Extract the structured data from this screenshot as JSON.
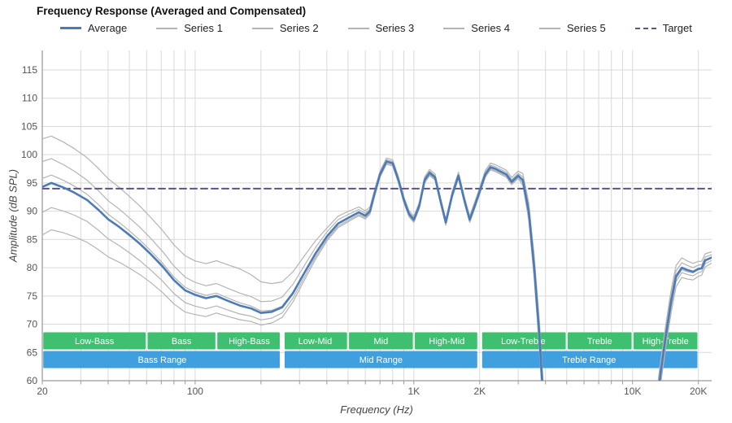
{
  "title": "Frequency Response (Averaged and Compensated)",
  "legend": {
    "items": [
      {
        "label": "Average",
        "color": "#4b7cb8",
        "style": "solid-thick"
      },
      {
        "label": "Series 1",
        "color": "#b4b4b4",
        "style": "solid-thin"
      },
      {
        "label": "Series 2",
        "color": "#b4b4b4",
        "style": "solid-thin"
      },
      {
        "label": "Series 3",
        "color": "#b4b4b4",
        "style": "solid-thin"
      },
      {
        "label": "Series 4",
        "color": "#b4b4b4",
        "style": "solid-thin"
      },
      {
        "label": "Series 5",
        "color": "#b4b4b4",
        "style": "solid-thin"
      },
      {
        "label": "Target",
        "color": "#5e5289",
        "style": "dashed"
      }
    ]
  },
  "axes": {
    "x_label": "Frequency (Hz)",
    "y_label": "Amplitude (dB SPL)",
    "y_ticks": [
      60,
      65,
      70,
      75,
      80,
      85,
      90,
      95,
      100,
      105,
      110,
      115
    ],
    "x_ticks": [
      {
        "f": 20,
        "label": "20"
      },
      {
        "f": 100,
        "label": "100"
      },
      {
        "f": 1000,
        "label": "1K"
      },
      {
        "f": 2000,
        "label": "2K"
      },
      {
        "f": 10000,
        "label": "10K"
      },
      {
        "f": 20000,
        "label": "20K"
      }
    ],
    "x_range": [
      20,
      23000
    ],
    "y_range": [
      60,
      118.5
    ],
    "x_scale": "log"
  },
  "bands": {
    "green_color": "#3fbf70",
    "blue_color": "#3f9fdf",
    "sub": [
      {
        "label": "Low-Bass",
        "from": 20,
        "to": 60
      },
      {
        "label": "Bass",
        "from": 60,
        "to": 125
      },
      {
        "label": "High-Bass",
        "from": 125,
        "to": 250
      },
      {
        "label": "Low-Mid",
        "from": 250,
        "to": 500
      },
      {
        "label": "Mid",
        "from": 500,
        "to": 1000
      },
      {
        "label": "High-Mid",
        "from": 1000,
        "to": 2000
      },
      {
        "label": "Low-Treble",
        "from": 2000,
        "to": 5000
      },
      {
        "label": "Treble",
        "from": 5000,
        "to": 10000
      },
      {
        "label": "High-Treble",
        "from": 10000,
        "to": 20000
      }
    ],
    "main": [
      {
        "label": "Bass Range",
        "from": 20,
        "to": 250
      },
      {
        "label": "Mid Range",
        "from": 250,
        "to": 2000
      },
      {
        "label": "Treble Range",
        "from": 2000,
        "to": 20000
      }
    ]
  },
  "chart_data": {
    "type": "line",
    "title": "Frequency Response (Averaged and Compensated)",
    "xlabel": "Frequency (Hz)",
    "ylabel": "Amplitude (dB SPL)",
    "x_scale": "log",
    "x_range": [
      20,
      23000
    ],
    "y_range": [
      60,
      118.5
    ],
    "grid": true,
    "legend_position": "top",
    "target_db": 94,
    "average_color": "#4b7cb8",
    "series_color": "#b4b4b4",
    "target_color": "#5e5289",
    "x": [
      20,
      22,
      25,
      28,
      32,
      36,
      40,
      45,
      50,
      56,
      63,
      71,
      80,
      90,
      100,
      112,
      125,
      140,
      160,
      180,
      200,
      224,
      250,
      280,
      315,
      355,
      400,
      450,
      500,
      560,
      600,
      630,
      660,
      700,
      750,
      800,
      850,
      900,
      950,
      1000,
      1060,
      1120,
      1180,
      1250,
      1320,
      1400,
      1500,
      1600,
      1700,
      1800,
      1900,
      2000,
      2120,
      2240,
      2360,
      2500,
      2650,
      2800,
      3000,
      3150,
      3350,
      3550,
      3750,
      3900,
      13000,
      13500,
      14200,
      15000,
      15800,
      16800,
      17800,
      18900,
      20000,
      20700,
      21500,
      23000
    ],
    "average": [
      94.3,
      95.0,
      94.2,
      93.3,
      92.0,
      90.3,
      88.6,
      87.2,
      85.8,
      84.2,
      82.3,
      80.2,
      77.8,
      76.0,
      75.2,
      74.6,
      75.0,
      74.2,
      73.3,
      72.8,
      72.0,
      72.2,
      73.0,
      75.5,
      79.0,
      82.5,
      85.5,
      87.8,
      88.8,
      89.8,
      89.2,
      90.0,
      93.0,
      96.5,
      98.8,
      98.5,
      95.5,
      92.0,
      89.5,
      88.5,
      91.0,
      95.5,
      96.8,
      96.0,
      92.0,
      88.0,
      93.0,
      96.3,
      92.0,
      88.5,
      91.0,
      93.5,
      96.5,
      97.8,
      97.5,
      97.0,
      96.5,
      95.2,
      96.3,
      95.5,
      90.0,
      80.0,
      68.0,
      57.0,
      57.0,
      62.0,
      68.0,
      74.0,
      78.5,
      80.0,
      79.6,
      79.3,
      79.8,
      79.9,
      81.3,
      81.8
    ],
    "series_offsets": {
      "control_freqs": [
        20,
        32,
        63,
        100,
        160,
        250,
        400,
        700,
        1500,
        3000,
        4000,
        15000,
        23000
      ],
      "Series 1": [
        8.5,
        7.5,
        6.5,
        6.0,
        6.5,
        4.5,
        1.5,
        0.6,
        0.6,
        0.8,
        3.0,
        2.0,
        1.0
      ],
      "Series 2": [
        4.5,
        3.5,
        2.8,
        2.2,
        2.2,
        1.8,
        0.8,
        0.3,
        0.3,
        0.4,
        1.5,
        1.0,
        0.5
      ],
      "Series 3": [
        1.5,
        1.0,
        0.6,
        0.5,
        0.5,
        0.2,
        0.1,
        0.0,
        0.0,
        0.1,
        0.0,
        -0.5,
        0.0
      ],
      "Series 4": [
        -4.5,
        -3.8,
        -2.8,
        -2.0,
        -1.5,
        -1.0,
        -0.5,
        -0.3,
        -0.3,
        -0.3,
        -1.5,
        -1.0,
        -0.5
      ],
      "Series 5": [
        -8.5,
        -7.5,
        -5.0,
        -3.5,
        -2.5,
        -1.8,
        -0.8,
        -0.5,
        -0.5,
        -0.5,
        -3.0,
        -2.0,
        -1.0
      ]
    }
  }
}
